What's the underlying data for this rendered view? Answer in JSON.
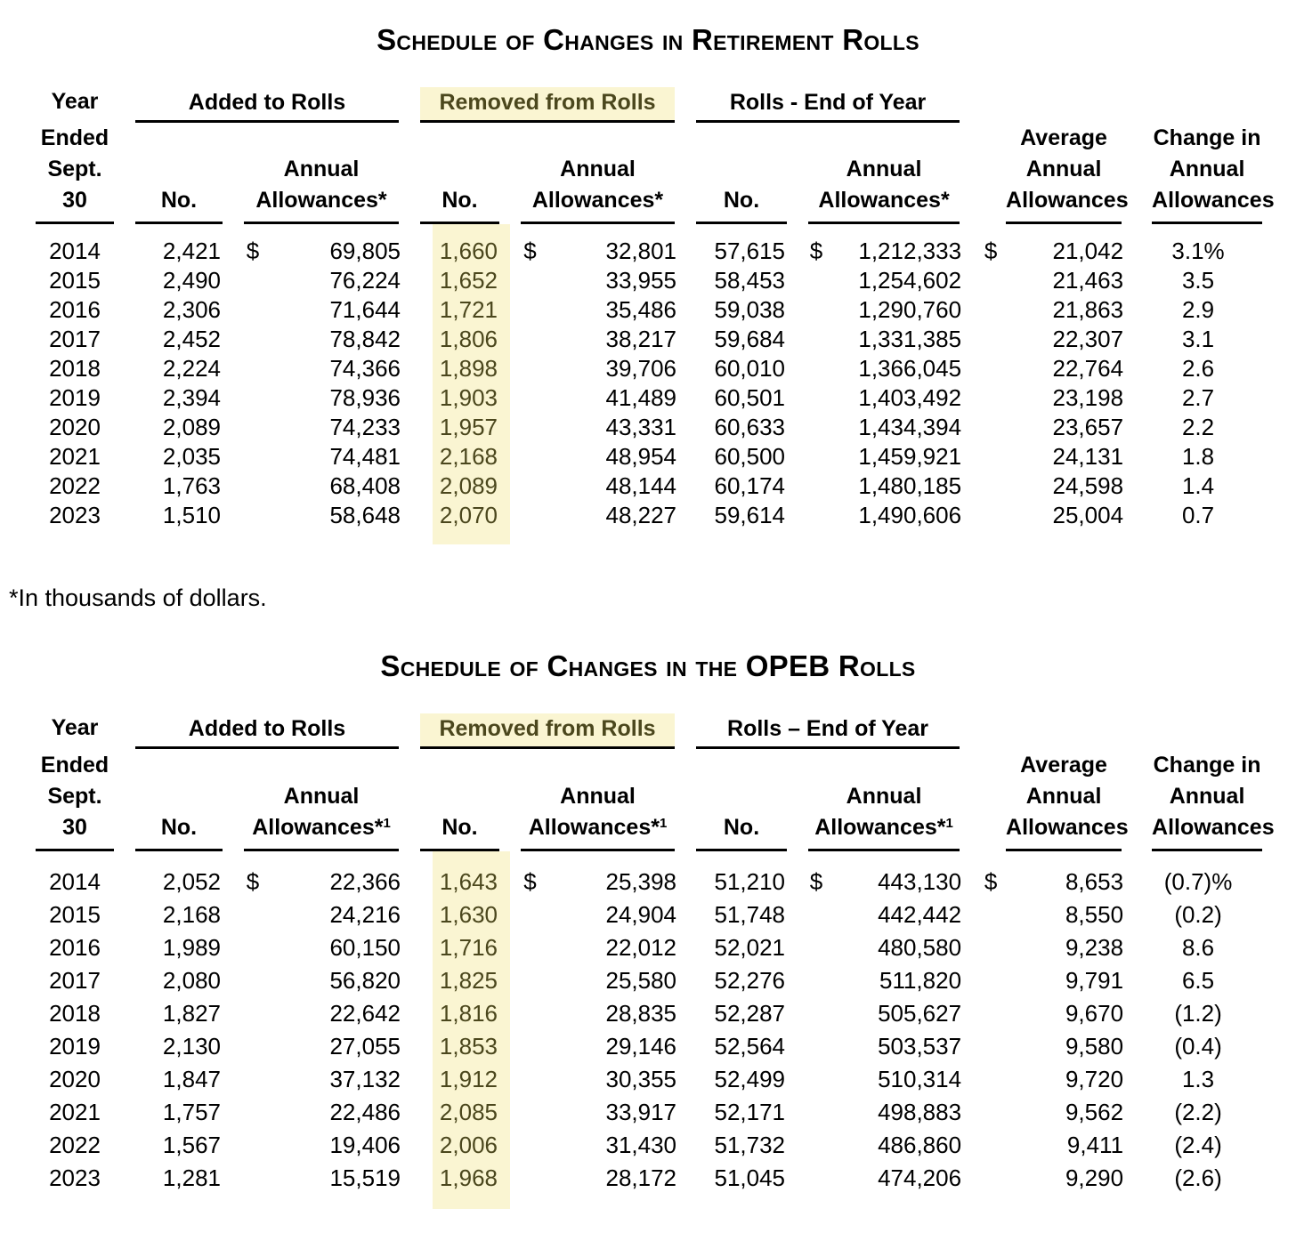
{
  "colors": {
    "page_background": "#ffffff",
    "text": "#000000",
    "highlight_background": "#faf5d2",
    "highlight_text": "#4b471d",
    "rule": "#000000"
  },
  "footnote": "*In thousands of dollars.",
  "tables": [
    {
      "title": "Schedule of Changes in Retirement Rolls",
      "year_label": "Year",
      "year_sub": [
        "Ended",
        "Sept. 30"
      ],
      "groups": [
        {
          "label": "Added to Rolls",
          "highlighted": false
        },
        {
          "label": "Removed from Rolls",
          "highlighted": true
        },
        {
          "label": "Rolls - End of Year",
          "highlighted": false
        }
      ],
      "headers": {
        "no": "No.",
        "annual": [
          "Annual",
          "Allowances*"
        ],
        "annual_sup": "",
        "average": [
          "Average",
          "Annual",
          "Allowances"
        ],
        "change": [
          "Change in",
          "Annual",
          "Allowances"
        ]
      },
      "rows": [
        [
          "2014",
          "2,421",
          "$",
          "69,805",
          "1,660",
          "$",
          "32,801",
          "57,615",
          "$",
          "1,212,333",
          "$",
          "21,042",
          "3.1%"
        ],
        [
          "2015",
          "2,490",
          "",
          "76,224",
          "1,652",
          "",
          "33,955",
          "58,453",
          "",
          "1,254,602",
          "",
          "21,463",
          "3.5"
        ],
        [
          "2016",
          "2,306",
          "",
          "71,644",
          "1,721",
          "",
          "35,486",
          "59,038",
          "",
          "1,290,760",
          "",
          "21,863",
          "2.9"
        ],
        [
          "2017",
          "2,452",
          "",
          "78,842",
          "1,806",
          "",
          "38,217",
          "59,684",
          "",
          "1,331,385",
          "",
          "22,307",
          "3.1"
        ],
        [
          "2018",
          "2,224",
          "",
          "74,366",
          "1,898",
          "",
          "39,706",
          "60,010",
          "",
          "1,366,045",
          "",
          "22,764",
          "2.6"
        ],
        [
          "2019",
          "2,394",
          "",
          "78,936",
          "1,903",
          "",
          "41,489",
          "60,501",
          "",
          "1,403,492",
          "",
          "23,198",
          "2.7"
        ],
        [
          "2020",
          "2,089",
          "",
          "74,233",
          "1,957",
          "",
          "43,331",
          "60,633",
          "",
          "1,434,394",
          "",
          "23,657",
          "2.2"
        ],
        [
          "2021",
          "2,035",
          "",
          "74,481",
          "2,168",
          "",
          "48,954",
          "60,500",
          "",
          "1,459,921",
          "",
          "24,131",
          "1.8"
        ],
        [
          "2022",
          "1,763",
          "",
          "68,408",
          "2,089",
          "",
          "48,144",
          "60,174",
          "",
          "1,480,185",
          "",
          "24,598",
          "1.4"
        ],
        [
          "2023",
          "1,510",
          "",
          "58,648",
          "2,070",
          "",
          "48,227",
          "59,614",
          "",
          "1,490,606",
          "",
          "25,004",
          "0.7"
        ]
      ]
    },
    {
      "title": "Schedule of Changes in the OPEB Rolls",
      "year_label": "Year",
      "year_sub": [
        "Ended",
        "Sept.",
        "30"
      ],
      "groups": [
        {
          "label": "Added to Rolls",
          "highlighted": false
        },
        {
          "label": "Removed from Rolls",
          "highlighted": true
        },
        {
          "label": "Rolls – End of Year",
          "highlighted": false
        }
      ],
      "headers": {
        "no": "No.",
        "annual": [
          "Annual",
          "Allowances*"
        ],
        "annual_sup": "1",
        "average": [
          "Average",
          "Annual",
          "Allowances"
        ],
        "change": [
          "Change in",
          "Annual",
          "Allowances"
        ]
      },
      "rows": [
        [
          "2014",
          "2,052",
          "$",
          "22,366",
          "1,643",
          "$",
          "25,398",
          "51,210",
          "$",
          "443,130",
          "$",
          "8,653",
          "(0.7)%"
        ],
        [
          "2015",
          "2,168",
          "",
          "24,216",
          "1,630",
          "",
          "24,904",
          "51,748",
          "",
          "442,442",
          "",
          "8,550",
          "(0.2)"
        ],
        [
          "2016",
          "1,989",
          "",
          "60,150",
          "1,716",
          "",
          "22,012",
          "52,021",
          "",
          "480,580",
          "",
          "9,238",
          "8.6"
        ],
        [
          "2017",
          "2,080",
          "",
          "56,820",
          "1,825",
          "",
          "25,580",
          "52,276",
          "",
          "511,820",
          "",
          "9,791",
          "6.5"
        ],
        [
          "2018",
          "1,827",
          "",
          "22,642",
          "1,816",
          "",
          "28,835",
          "52,287",
          "",
          "505,627",
          "",
          "9,670",
          "(1.2)"
        ],
        [
          "2019",
          "2,130",
          "",
          "27,055",
          "1,853",
          "",
          "29,146",
          "52,564",
          "",
          "503,537",
          "",
          "9,580",
          "(0.4)"
        ],
        [
          "2020",
          "1,847",
          "",
          "37,132",
          "1,912",
          "",
          "30,355",
          "52,499",
          "",
          "510,314",
          "",
          "9,720",
          "1.3"
        ],
        [
          "2021",
          "1,757",
          "",
          "22,486",
          "2,085",
          "",
          "33,917",
          "52,171",
          "",
          "498,883",
          "",
          "9,562",
          "(2.2)"
        ],
        [
          "2022",
          "1,567",
          "",
          "19,406",
          "2,006",
          "",
          "31,430",
          "51,732",
          "",
          "486,860",
          "",
          "9,411",
          "(2.4)"
        ],
        [
          "2023",
          "1,281",
          "",
          "15,519",
          "1,968",
          "",
          "28,172",
          "51,045",
          "",
          "474,206",
          "",
          "9,290",
          "(2.6)"
        ]
      ]
    }
  ]
}
